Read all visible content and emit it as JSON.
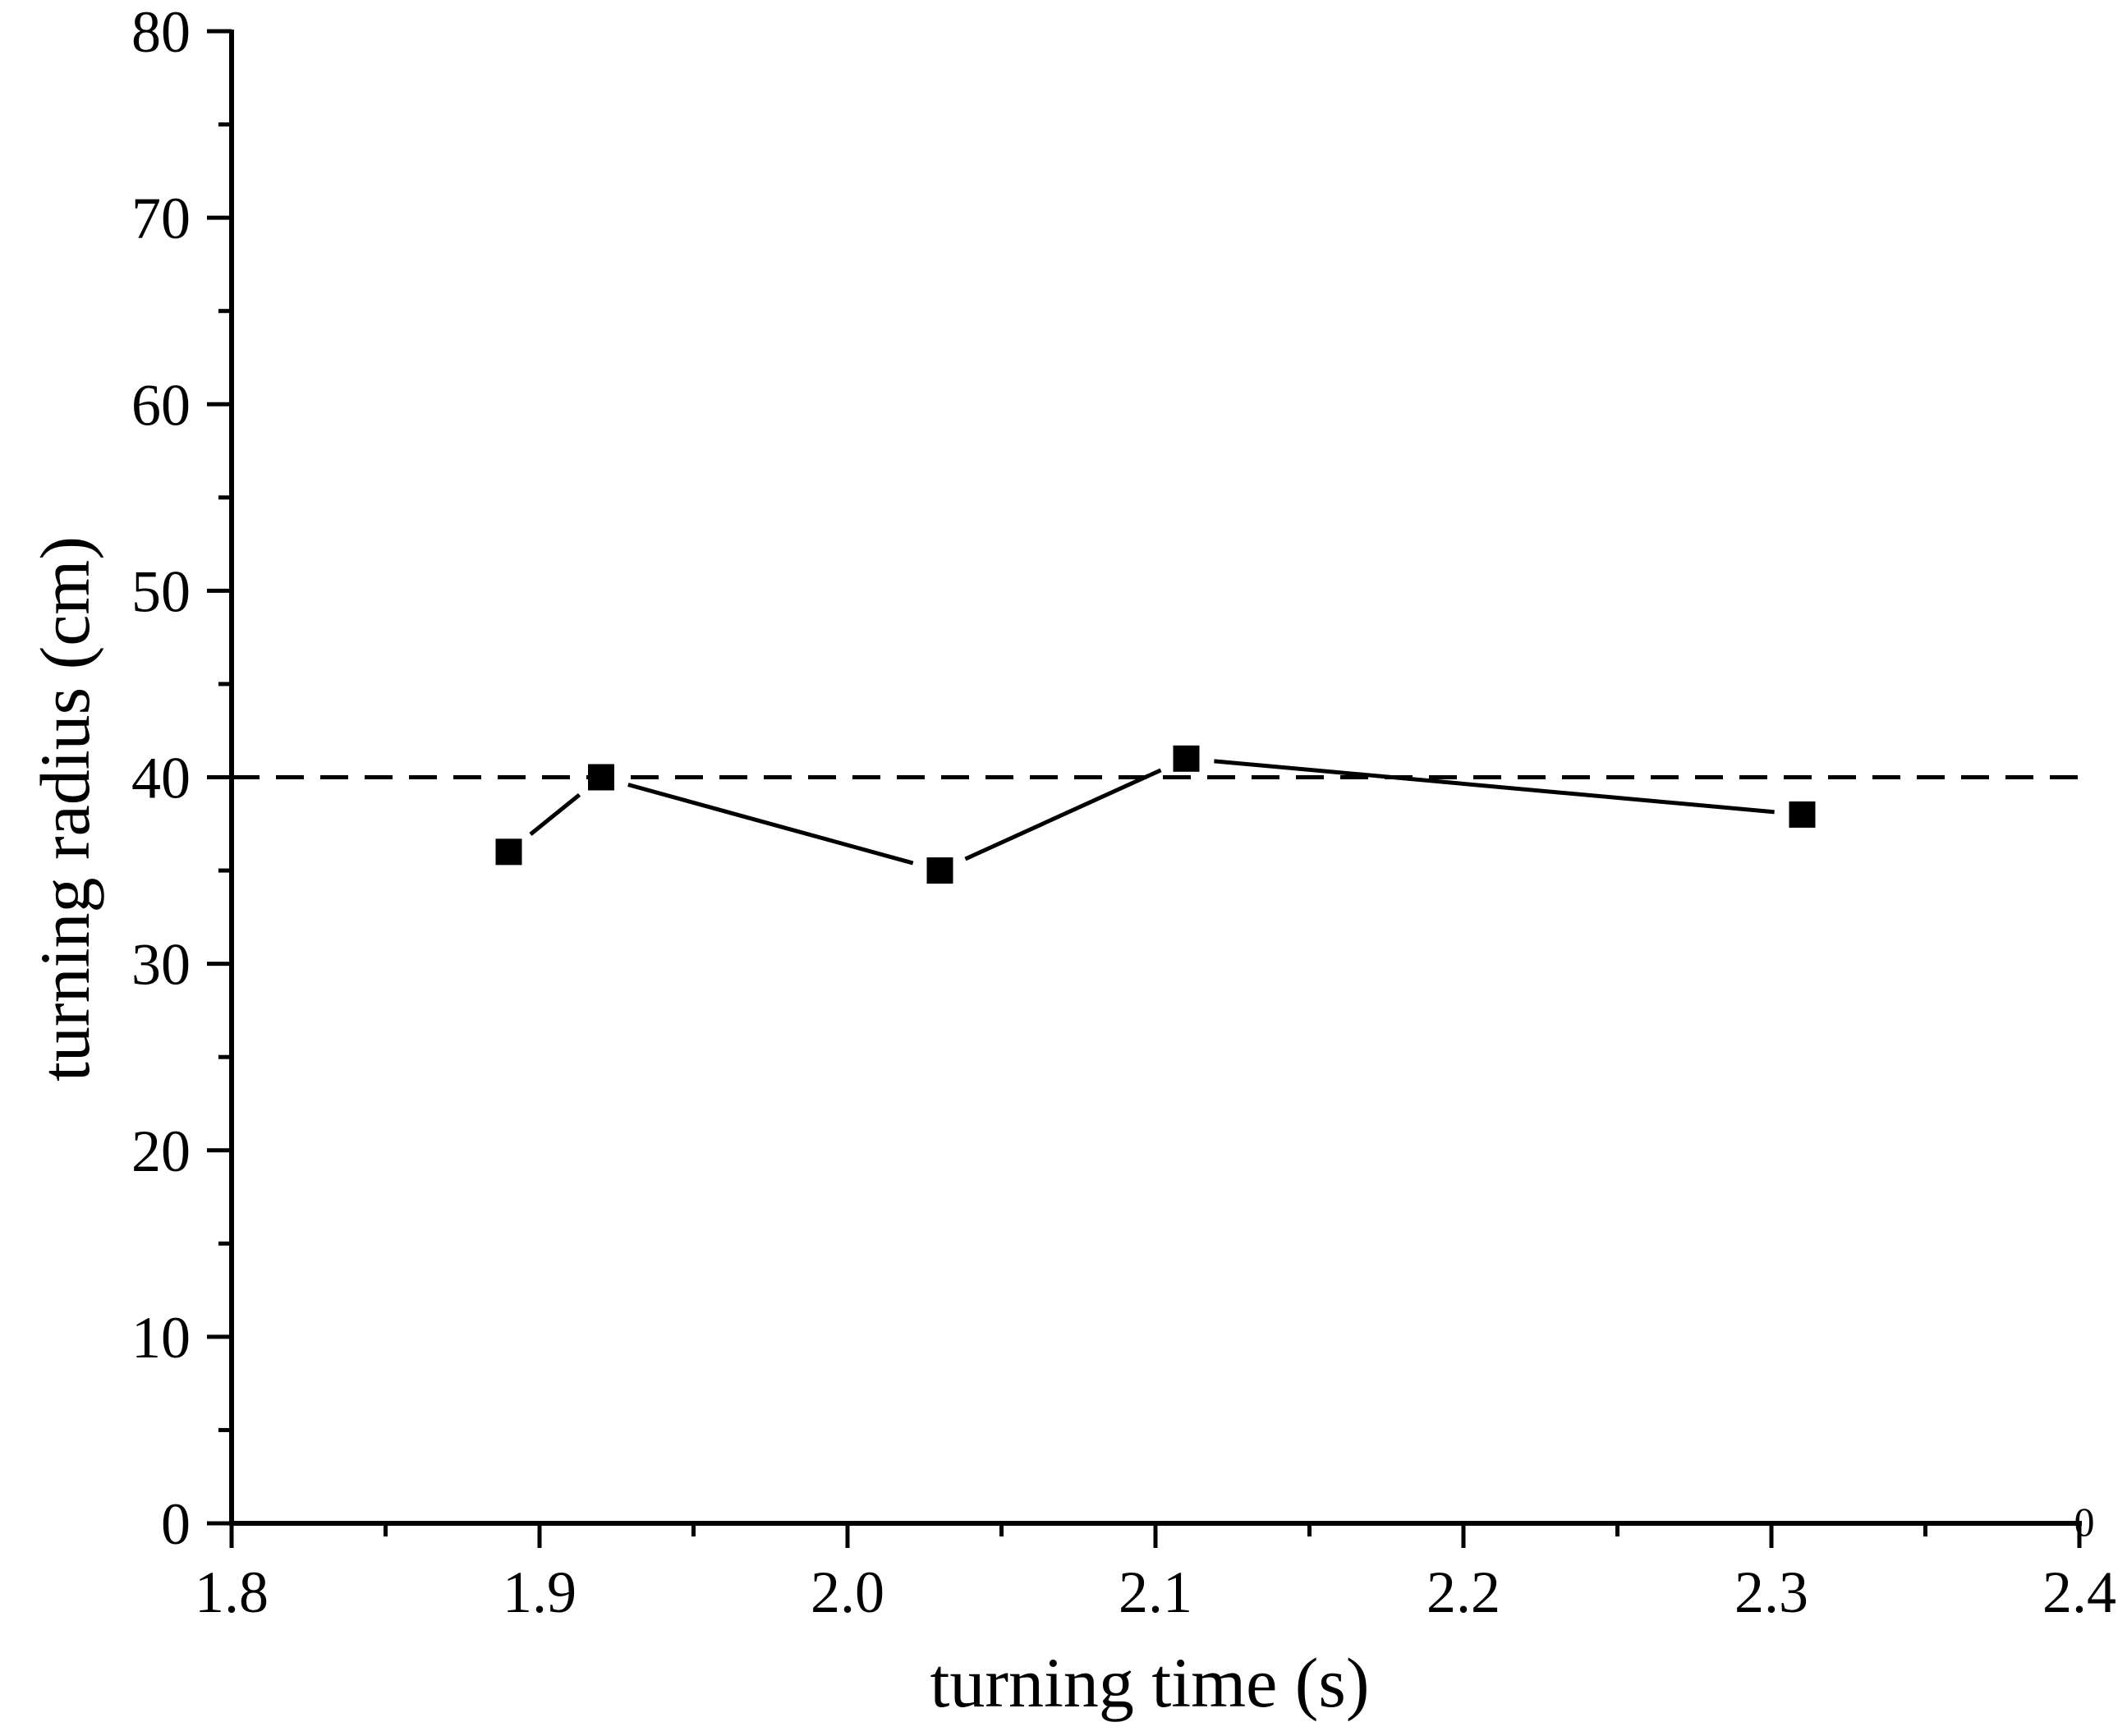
{
  "chart_data": {
    "type": "line",
    "title": "",
    "xlabel": "turning time (s)",
    "ylabel": "turning radius (cm)",
    "xlim": [
      1.8,
      2.4
    ],
    "ylim": [
      0,
      80
    ],
    "x_ticks": [
      1.8,
      1.9,
      2.0,
      2.1,
      2.2,
      2.3,
      2.4
    ],
    "x_tick_labels": [
      "1.8",
      "1.9",
      "2.0",
      "2.1",
      "2.2",
      "2.3",
      "2.4"
    ],
    "y_ticks": [
      0,
      10,
      20,
      30,
      40,
      50,
      60,
      70,
      80
    ],
    "y_tick_labels": [
      "0",
      "10",
      "20",
      "30",
      "40",
      "50",
      "60",
      "70",
      "80"
    ],
    "corner_label": "0",
    "grid": false,
    "series": [
      {
        "name": "turning radius",
        "marker": "square",
        "color": "#000000",
        "x": [
          1.89,
          1.92,
          2.03,
          2.11,
          2.31
        ],
        "y": [
          36,
          40,
          35,
          41,
          38
        ]
      }
    ],
    "reference_line": {
      "y": 40,
      "style": "dashed",
      "color": "#000000"
    }
  }
}
